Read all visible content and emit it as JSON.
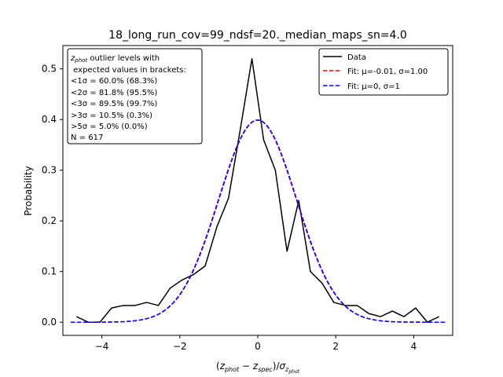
{
  "chart_data": {
    "type": "line",
    "title": "18_long_run_cov=99_ndsf=20._median_maps_sn=4.0",
    "xlabel": "(z_phot − z_spec)/σ_z_phot",
    "ylabel": "Probability",
    "xlim": [
      -5.0,
      5.0
    ],
    "ylim": [
      -0.026,
      0.546
    ],
    "x_ticks": [
      -4,
      -2,
      0,
      2,
      4
    ],
    "x_tick_labels": [
      "−4",
      "−2",
      "0",
      "2",
      "4"
    ],
    "y_ticks": [
      0.0,
      0.1,
      0.2,
      0.3,
      0.4,
      0.5
    ],
    "y_tick_labels": [
      "0.0",
      "0.1",
      "0.2",
      "0.3",
      "0.4",
      "0.5"
    ],
    "grid": false,
    "legend_position": "top-right",
    "series": [
      {
        "name": "Data",
        "color": "#000000",
        "style": "solid",
        "x": [
          -4.65,
          -4.35,
          -4.05,
          -3.75,
          -3.45,
          -3.15,
          -2.85,
          -2.55,
          -2.25,
          -1.95,
          -1.65,
          -1.35,
          -1.05,
          -0.75,
          -0.45,
          -0.15,
          0.15,
          0.45,
          0.75,
          1.05,
          1.35,
          1.65,
          1.95,
          2.25,
          2.55,
          2.85,
          3.15,
          3.45,
          3.75,
          4.05,
          4.35,
          4.65
        ],
        "y": [
          0.011,
          0.0,
          0.0,
          0.028,
          0.033,
          0.033,
          0.039,
          0.033,
          0.067,
          0.083,
          0.094,
          0.111,
          0.188,
          0.245,
          0.38,
          0.52,
          0.36,
          0.3,
          0.14,
          0.24,
          0.1,
          0.077,
          0.039,
          0.033,
          0.033,
          0.017,
          0.011,
          0.022,
          0.011,
          0.028,
          0.0,
          0.011
        ]
      },
      {
        "name": "Fit: μ=-0.01, σ=1.00",
        "color": "#ff0000",
        "style": "dashed",
        "mu": -0.01,
        "sigma": 1.0,
        "x_range": [
          -4.8,
          4.8
        ]
      },
      {
        "name": "Fit: μ=0, σ=1",
        "color": "#0000ff",
        "style": "dashed",
        "mu": 0.0,
        "sigma": 1.0,
        "x_range": [
          -4.8,
          4.8
        ]
      }
    ],
    "legend_entries": [
      "Data",
      "Fit: μ=-0.01, σ=1.00",
      "Fit: μ=0, σ=1"
    ],
    "annotation": {
      "lines": [
        "z_phot outlier levels with",
        " expected values in brackets:",
        "<1σ = 60.0% (68.3%)",
        "<2σ = 81.8% (95.5%)",
        "<3σ = 89.5% (99.7%)",
        ">3σ = 10.5% (0.3%)",
        ">5σ = 5.0% (0.0%)",
        "N = 617"
      ]
    }
  }
}
